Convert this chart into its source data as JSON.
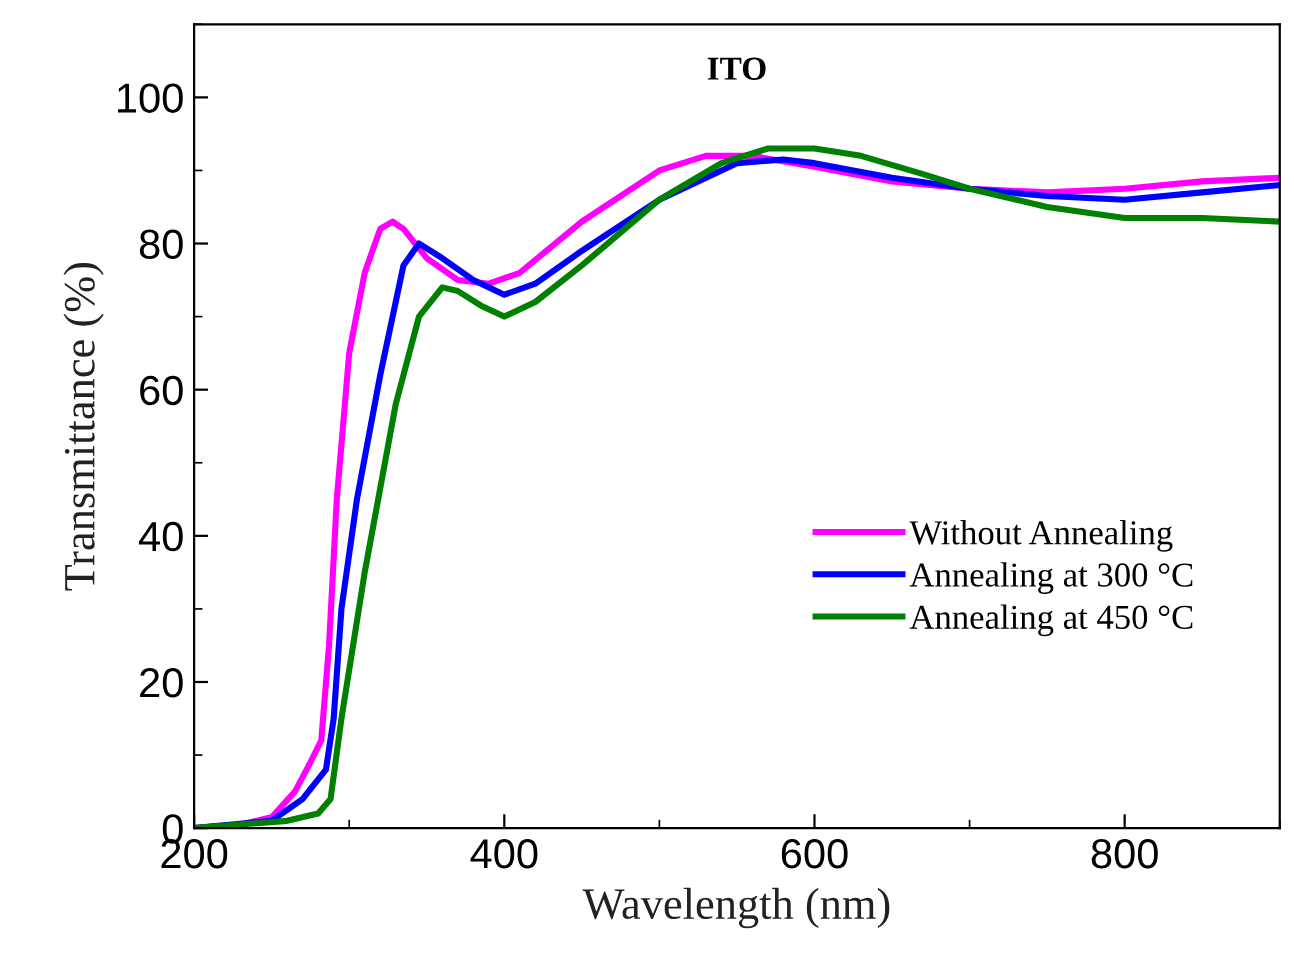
{
  "chart_data": {
    "type": "line",
    "title": "ITO",
    "xlabel": "Wavelength (nm)",
    "ylabel": "Transmittance (%)",
    "xlim": [
      200,
      900
    ],
    "xticks": [
      200,
      400,
      600,
      800
    ],
    "ylim": [
      0,
      110
    ],
    "yticks": [
      0,
      20,
      40,
      60,
      80,
      100
    ],
    "grid": false,
    "legend": "bottom right",
    "marker": "none",
    "line_style": "solid",
    "series": [
      {
        "name": "Without Annealing",
        "color": "#ff00ff",
        "x": [
          200,
          230,
          250,
          265,
          275,
          282,
          287,
          292,
          300,
          310,
          320,
          328,
          335,
          350,
          370,
          390,
          410,
          450,
          500,
          530,
          560,
          600,
          650,
          700,
          750,
          800,
          850,
          900
        ],
        "values": [
          0,
          0.5,
          1.5,
          5,
          9,
          12,
          25,
          45,
          65,
          76,
          82,
          83,
          82,
          78,
          75,
          74.5,
          76,
          83,
          90,
          92,
          92,
          90.5,
          88.5,
          87.5,
          87,
          87.5,
          88.5,
          89
        ]
      },
      {
        "name": "Annealing at 300 °C",
        "color": "#0000ff",
        "x": [
          200,
          250,
          270,
          285,
          290,
          295,
          305,
          320,
          335,
          345,
          360,
          380,
          400,
          420,
          450,
          500,
          550,
          580,
          600,
          650,
          700,
          750,
          800,
          850,
          900
        ],
        "values": [
          0,
          1,
          4,
          8,
          15,
          30,
          45,
          62,
          77,
          80,
          78,
          75,
          73,
          74.5,
          79,
          86,
          91,
          91.5,
          91,
          89,
          87.5,
          86.5,
          86,
          87,
          88
        ]
      },
      {
        "name": "Annealing at 450 °C",
        "color": "#008000",
        "x": [
          200,
          260,
          280,
          288,
          295,
          310,
          330,
          345,
          360,
          370,
          385,
          400,
          420,
          450,
          500,
          540,
          570,
          600,
          630,
          670,
          700,
          750,
          800,
          850,
          900
        ],
        "values": [
          0,
          1,
          2,
          4,
          15,
          35,
          58,
          70,
          74,
          73.5,
          71.5,
          70,
          72,
          77,
          86,
          91,
          93,
          93,
          92,
          89.5,
          87.5,
          85,
          83.5,
          83.5,
          83
        ]
      }
    ]
  }
}
